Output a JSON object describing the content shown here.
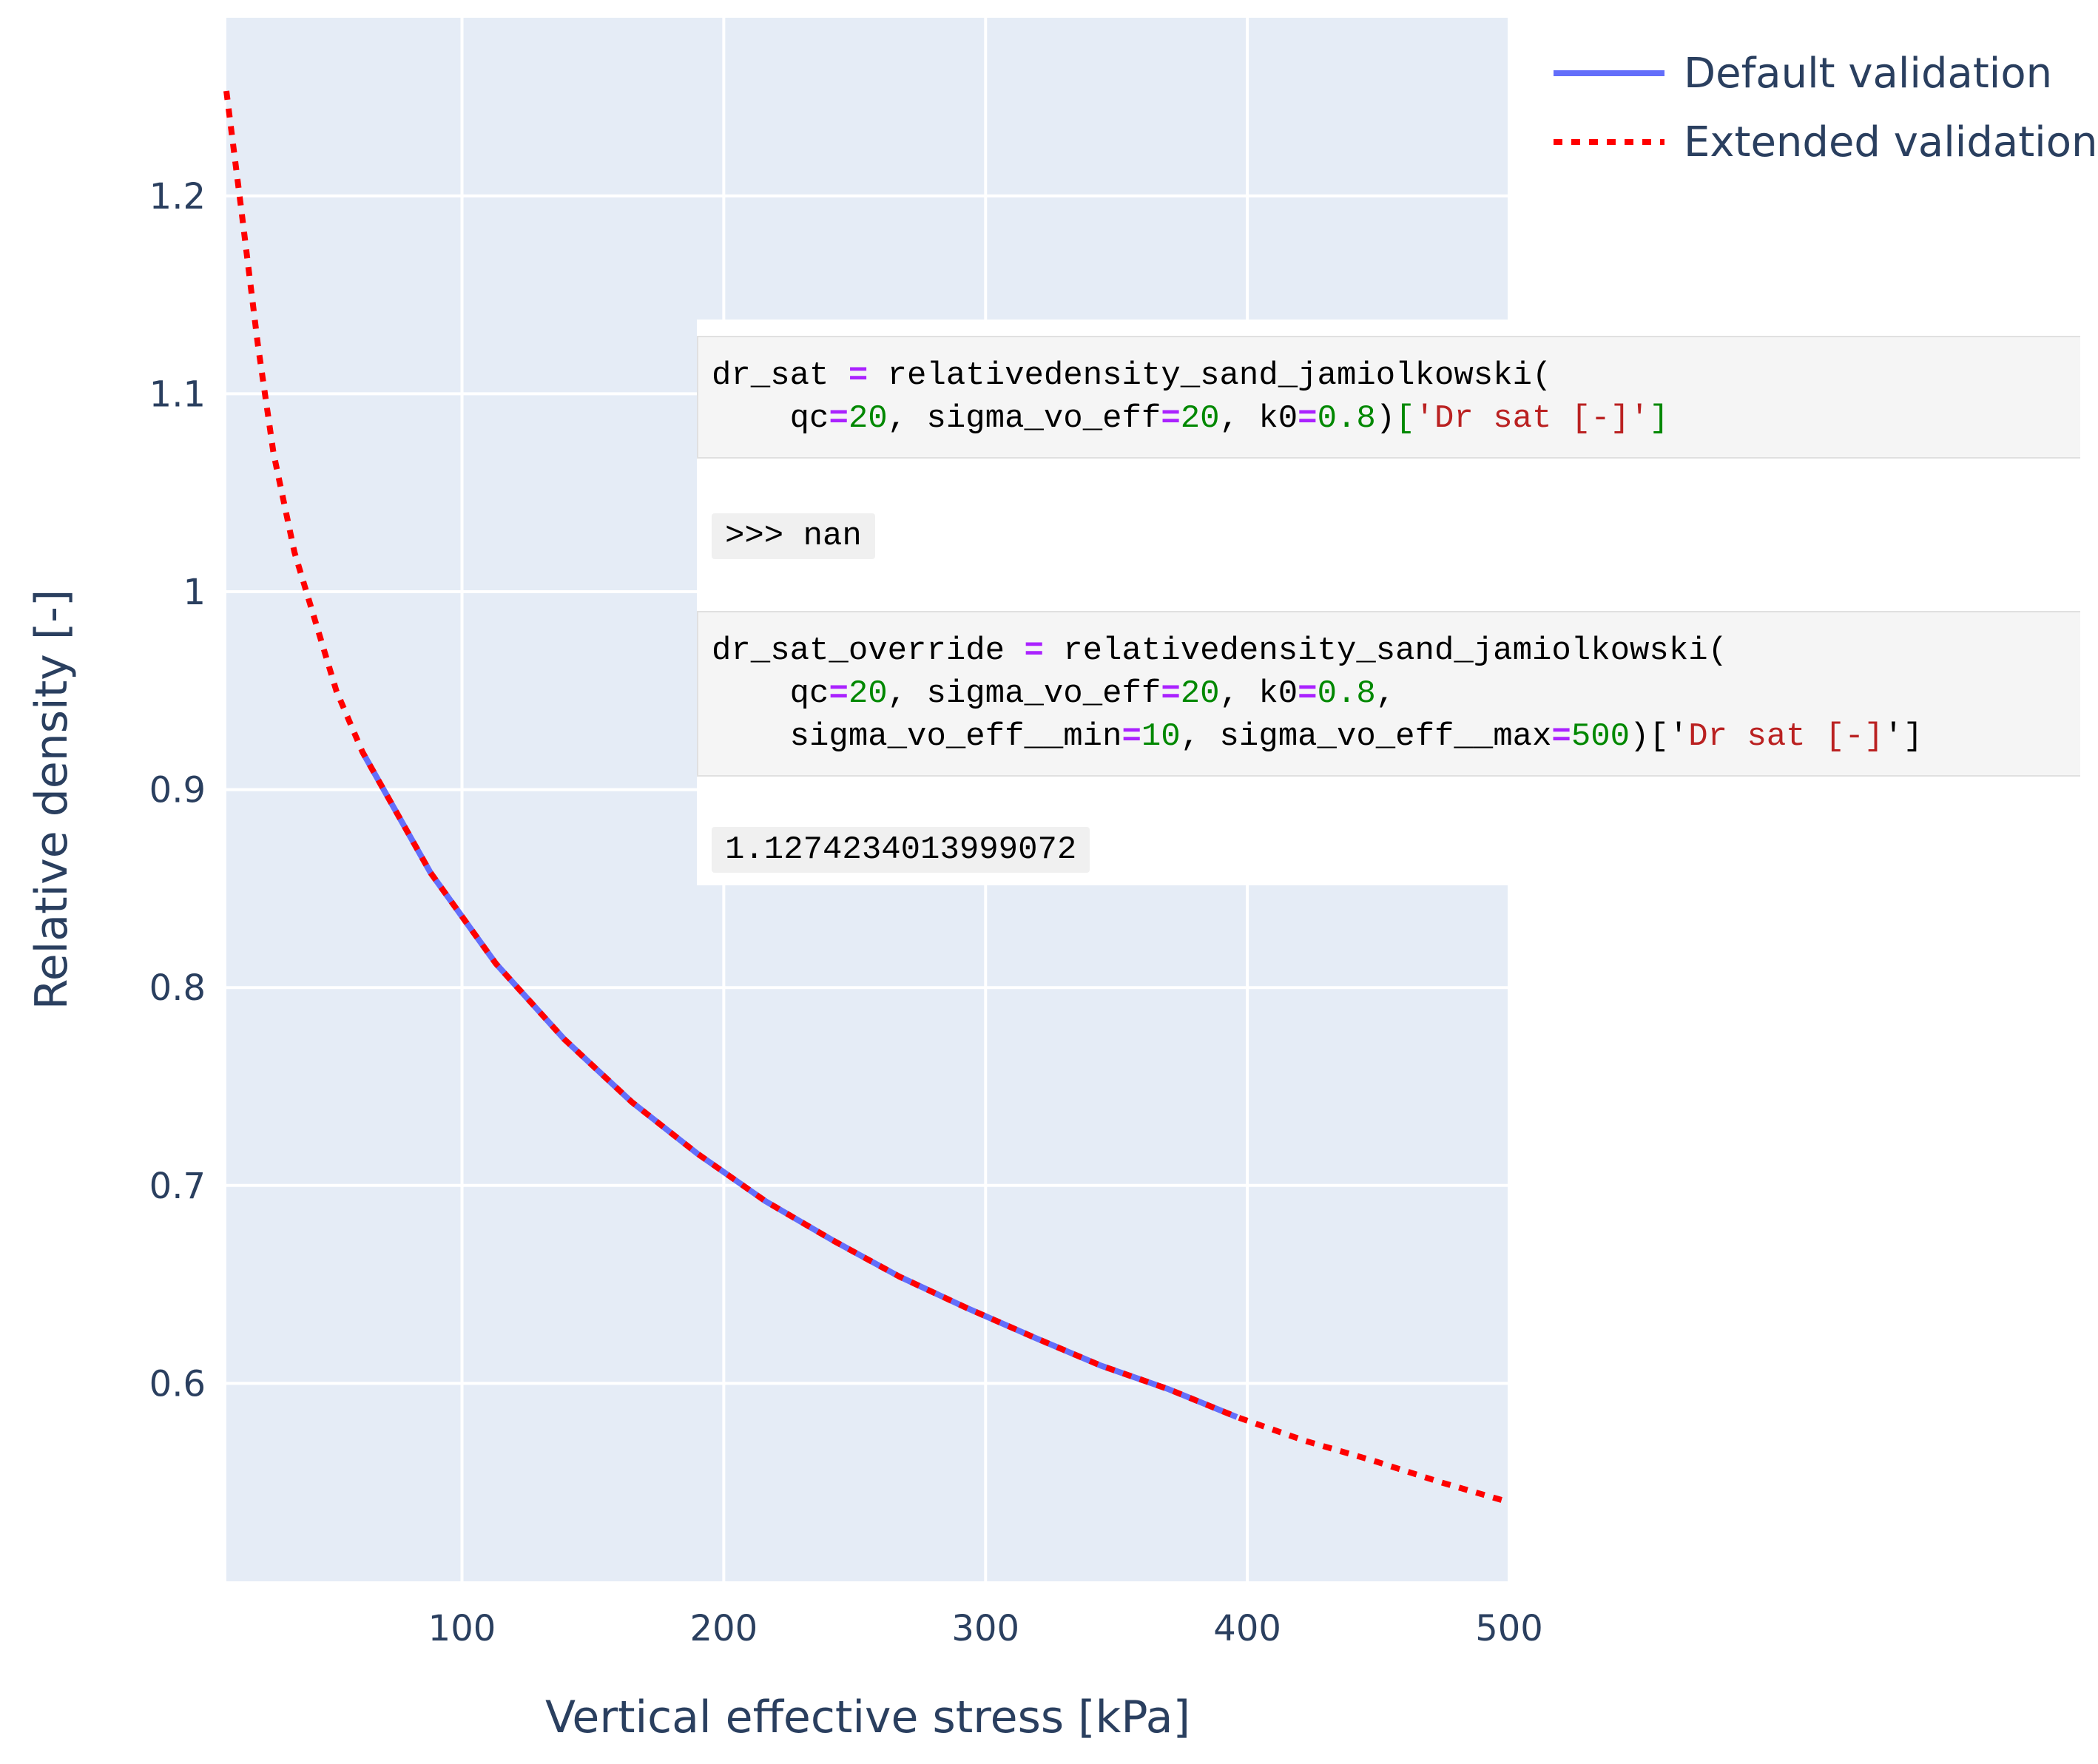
{
  "chart_data": {
    "type": "line",
    "xlabel": "Vertical effective stress [kPa]",
    "ylabel": "Relative density [-]",
    "xlim": [
      10,
      500
    ],
    "ylim": [
      0.5,
      1.29
    ],
    "x_ticks": [
      100,
      200,
      300,
      400,
      500
    ],
    "y_ticks": [
      0.6,
      0.7,
      0.8,
      0.9,
      1.0,
      1.1,
      1.2
    ],
    "x_tick_labels": [
      "100",
      "200",
      "300",
      "400",
      "500"
    ],
    "y_tick_labels": [
      "0.6",
      "0.7",
      "0.8",
      "0.9",
      "1",
      "1.1",
      "1.2"
    ],
    "grid": true,
    "legend_position": "top-right",
    "series": [
      {
        "name": "Default validation",
        "color": "#636efa",
        "dash": "solid",
        "x": [
          62,
          88,
          113,
          139,
          165,
          190,
          216,
          242,
          267,
          293,
          319,
          344,
          370,
          396
        ],
        "y": [
          0.919,
          0.858,
          0.812,
          0.774,
          0.742,
          0.716,
          0.692,
          0.672,
          0.654,
          0.638,
          0.623,
          0.609,
          0.597,
          0.583
        ]
      },
      {
        "name": "Extended validation",
        "color": "#ff0000",
        "dash": "dot",
        "x": [
          10,
          16,
          22,
          28,
          36,
          44,
          52,
          62,
          88,
          113,
          139,
          165,
          190,
          216,
          242,
          267,
          293,
          319,
          344,
          370,
          396,
          422,
          448,
          474,
          500
        ],
        "y": [
          1.253,
          1.19,
          1.125,
          1.07,
          1.02,
          0.985,
          0.95,
          0.919,
          0.858,
          0.812,
          0.774,
          0.742,
          0.716,
          0.692,
          0.672,
          0.654,
          0.638,
          0.623,
          0.609,
          0.597,
          0.583,
          0.571,
          0.561,
          0.55,
          0.54
        ]
      }
    ],
    "annotations": {
      "code_block_1": [
        [
          [
            "dr_sat ",
            ""
          ],
          [
            "=",
            "op"
          ],
          [
            " relativedensity_sand_jamiolkowski(",
            ""
          ]
        ],
        [
          [
            "    qc",
            ""
          ],
          [
            "=",
            "op"
          ],
          [
            "20",
            "num"
          ],
          [
            ", sigma_vo_eff",
            ""
          ],
          [
            "=",
            "op"
          ],
          [
            "20",
            "num"
          ],
          [
            ", k0",
            ""
          ],
          [
            "=",
            "op"
          ],
          [
            "0.8",
            "num"
          ],
          [
            ")",
            ""
          ],
          [
            "[",
            "brk"
          ],
          [
            "'Dr sat [-]'",
            "str"
          ],
          [
            "]",
            "brk"
          ]
        ]
      ],
      "output_1": ">>> nan",
      "code_block_2": [
        [
          [
            "dr_sat_override ",
            ""
          ],
          [
            "=",
            "op"
          ],
          [
            " relativedensity_sand_jamiolkowski(",
            ""
          ]
        ],
        [
          [
            "    qc",
            ""
          ],
          [
            "=",
            "op"
          ],
          [
            "20",
            "num"
          ],
          [
            ", sigma_vo_eff",
            ""
          ],
          [
            "=",
            "op"
          ],
          [
            "20",
            "num"
          ],
          [
            ", k0",
            ""
          ],
          [
            "=",
            "op"
          ],
          [
            "0.8",
            "num"
          ],
          [
            ",",
            ""
          ]
        ],
        [
          [
            "    sigma_vo_eff__min",
            ""
          ],
          [
            "=",
            "op"
          ],
          [
            "10",
            "num"
          ],
          [
            ", sigma_vo_eff__max",
            ""
          ],
          [
            "=",
            "op"
          ],
          [
            "500",
            "num"
          ],
          [
            ")['",
            ""
          ],
          [
            "Dr sat [-]",
            "str"
          ],
          [
            "']",
            ""
          ]
        ]
      ],
      "output_2": "1.1274234013999072"
    }
  }
}
